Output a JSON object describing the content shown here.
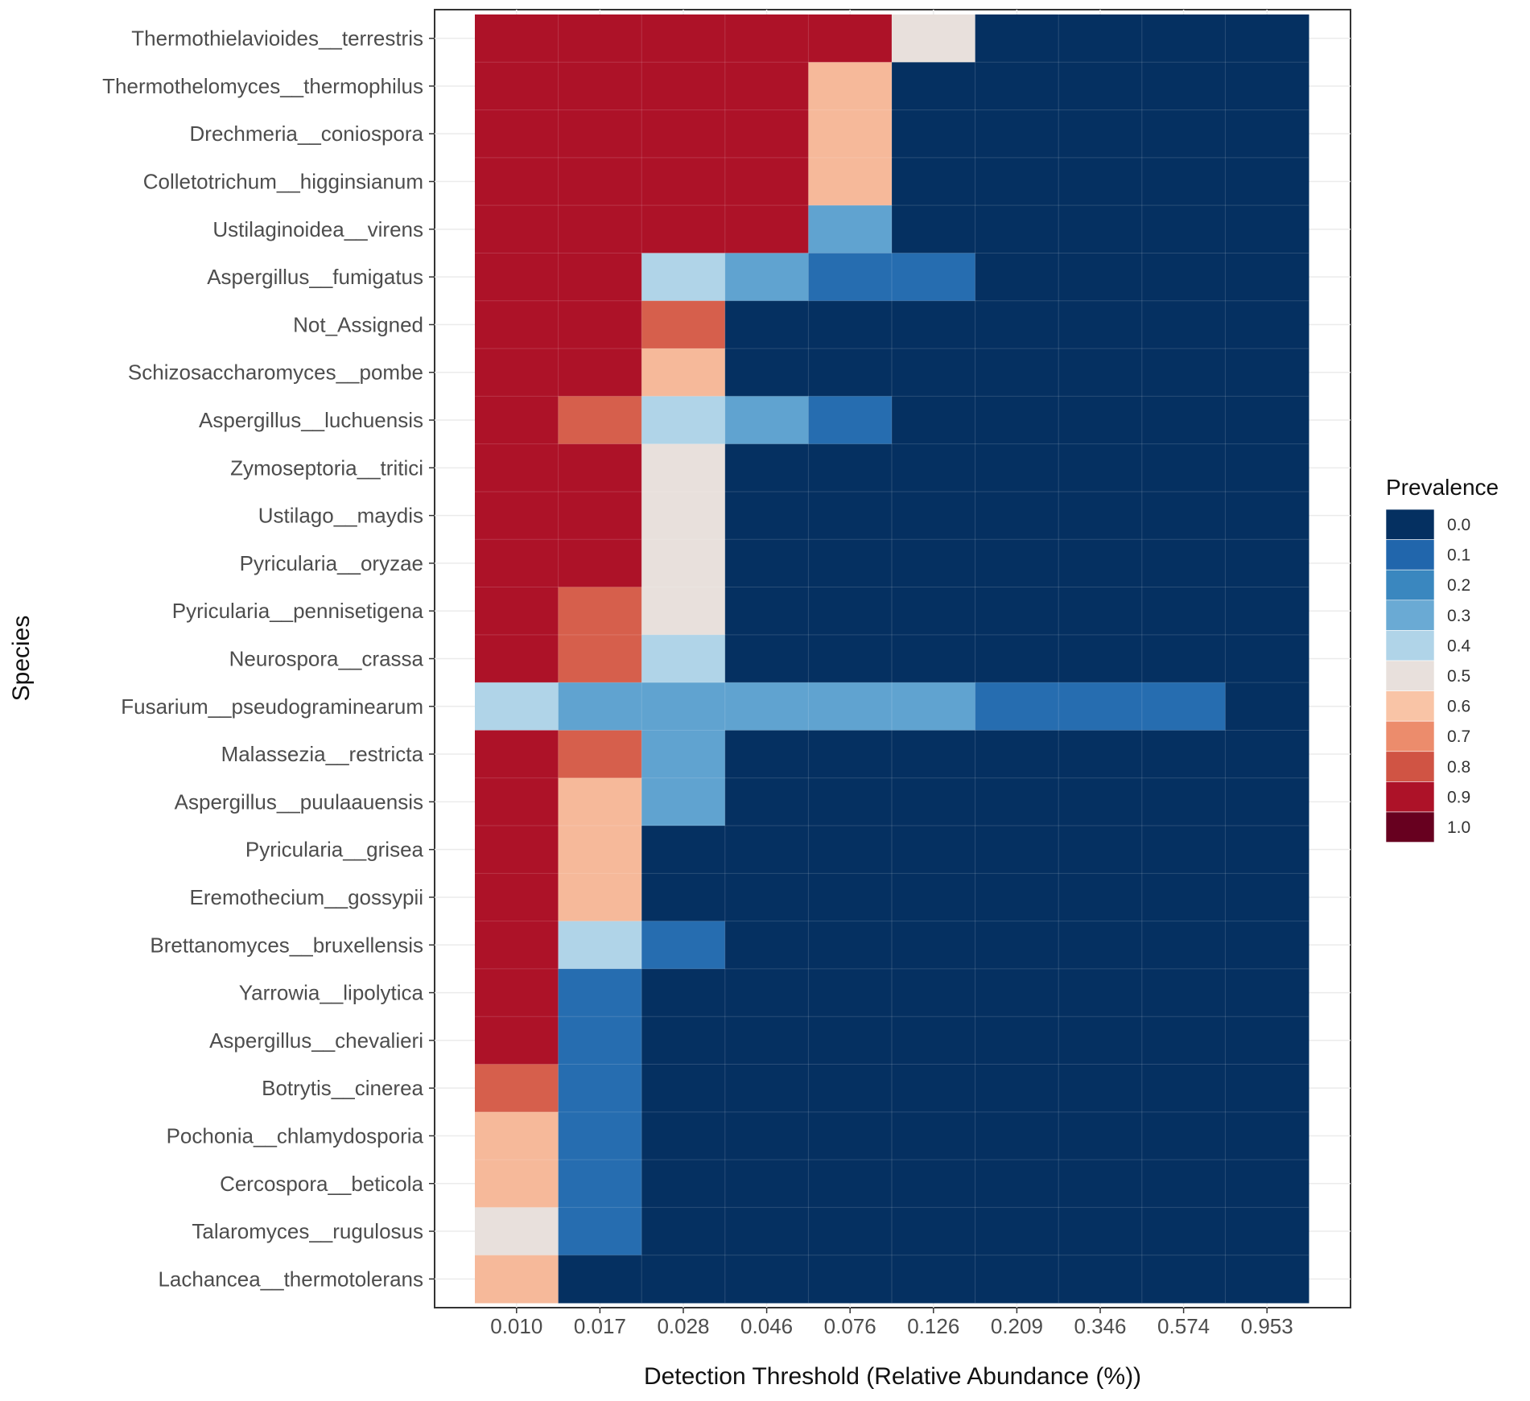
{
  "chart_data": {
    "type": "heatmap",
    "xlabel": "Detection Threshold (Relative Abundance (%))",
    "ylabel": "Species",
    "x": [
      "0.010",
      "0.017",
      "0.028",
      "0.046",
      "0.076",
      "0.126",
      "0.209",
      "0.346",
      "0.574",
      "0.953"
    ],
    "y": [
      "Thermothielavioides__terrestris",
      "Thermothelomyces__thermophilus",
      "Drechmeria__coniospora",
      "Colletotrichum__higginsianum",
      "Ustilaginoidea__virens",
      "Aspergillus__fumigatus",
      "Not_Assigned",
      "Schizosaccharomyces__pombe",
      "Aspergillus__luchuensis",
      "Zymoseptoria__tritici",
      "Ustilago__maydis",
      "Pyricularia__oryzae",
      "Pyricularia__pennisetigena",
      "Neurospora__crassa",
      "Fusarium__pseudograminearum",
      "Malassezia__restricta",
      "Aspergillus__puulaauensis",
      "Pyricularia__grisea",
      "Eremothecium__gossypii",
      "Brettanomyces__bruxellensis",
      "Yarrowia__lipolytica",
      "Aspergillus__chevalieri",
      "Botrytis__cinerea",
      "Pochonia__chlamydosporia",
      "Cercospora__beticola",
      "Talaromyces__rugulosus",
      "Lachancea__thermotolerans"
    ],
    "values": [
      [
        0.9,
        0.9,
        0.9,
        0.9,
        0.9,
        0.5,
        0,
        0,
        0,
        0
      ],
      [
        0.9,
        0.9,
        0.9,
        0.9,
        0.62,
        0,
        0,
        0,
        0,
        0
      ],
      [
        0.9,
        0.9,
        0.9,
        0.9,
        0.62,
        0,
        0,
        0,
        0,
        0
      ],
      [
        0.9,
        0.9,
        0.9,
        0.9,
        0.62,
        0,
        0,
        0,
        0,
        0
      ],
      [
        0.9,
        0.9,
        0.9,
        0.9,
        0.28,
        0,
        0,
        0,
        0,
        0
      ],
      [
        0.9,
        0.9,
        0.4,
        0.28,
        0.12,
        0.12,
        0,
        0,
        0,
        0
      ],
      [
        0.9,
        0.9,
        0.78,
        0,
        0,
        0,
        0,
        0,
        0,
        0
      ],
      [
        0.9,
        0.9,
        0.62,
        0,
        0,
        0,
        0,
        0,
        0,
        0
      ],
      [
        0.9,
        0.78,
        0.4,
        0.28,
        0.12,
        0,
        0,
        0,
        0,
        0
      ],
      [
        0.9,
        0.9,
        0.5,
        0,
        0,
        0,
        0,
        0,
        0,
        0
      ],
      [
        0.9,
        0.9,
        0.5,
        0,
        0,
        0,
        0,
        0,
        0,
        0
      ],
      [
        0.9,
        0.9,
        0.5,
        0,
        0,
        0,
        0,
        0,
        0,
        0
      ],
      [
        0.9,
        0.78,
        0.5,
        0,
        0,
        0,
        0,
        0,
        0,
        0
      ],
      [
        0.9,
        0.78,
        0.4,
        0,
        0,
        0,
        0,
        0,
        0,
        0
      ],
      [
        0.4,
        0.28,
        0.28,
        0.28,
        0.28,
        0.28,
        0.12,
        0.12,
        0.12,
        0
      ],
      [
        0.9,
        0.78,
        0.28,
        0,
        0,
        0,
        0,
        0,
        0,
        0
      ],
      [
        0.9,
        0.62,
        0.28,
        0,
        0,
        0,
        0,
        0,
        0,
        0
      ],
      [
        0.9,
        0.62,
        0,
        0,
        0,
        0,
        0,
        0,
        0,
        0
      ],
      [
        0.9,
        0.62,
        0,
        0,
        0,
        0,
        0,
        0,
        0,
        0
      ],
      [
        0.9,
        0.4,
        0.12,
        0,
        0,
        0,
        0,
        0,
        0,
        0
      ],
      [
        0.9,
        0.12,
        0,
        0,
        0,
        0,
        0,
        0,
        0,
        0
      ],
      [
        0.9,
        0.12,
        0,
        0,
        0,
        0,
        0,
        0,
        0,
        0
      ],
      [
        0.78,
        0.12,
        0,
        0,
        0,
        0,
        0,
        0,
        0,
        0
      ],
      [
        0.62,
        0.12,
        0,
        0,
        0,
        0,
        0,
        0,
        0,
        0
      ],
      [
        0.62,
        0.12,
        0,
        0,
        0,
        0,
        0,
        0,
        0,
        0
      ],
      [
        0.5,
        0.12,
        0,
        0,
        0,
        0,
        0,
        0,
        0,
        0
      ],
      [
        0.62,
        0,
        0,
        0,
        0,
        0,
        0,
        0,
        0,
        0
      ]
    ],
    "legend": {
      "title": "Prevalence",
      "placement": "right",
      "breaks": [
        "0.0",
        "0.1",
        "0.2",
        "0.3",
        "0.4",
        "0.5",
        "0.6",
        "0.7",
        "0.8",
        "0.9",
        "1.0"
      ],
      "colors": [
        "#053061",
        "#2166ac",
        "#3a87bf",
        "#6aaad4",
        "#b0d4e8",
        "#e8e0dc",
        "#f9c4a6",
        "#ec8c6c",
        "#d05444",
        "#ad1228",
        "#67001f"
      ]
    },
    "grid": true
  }
}
